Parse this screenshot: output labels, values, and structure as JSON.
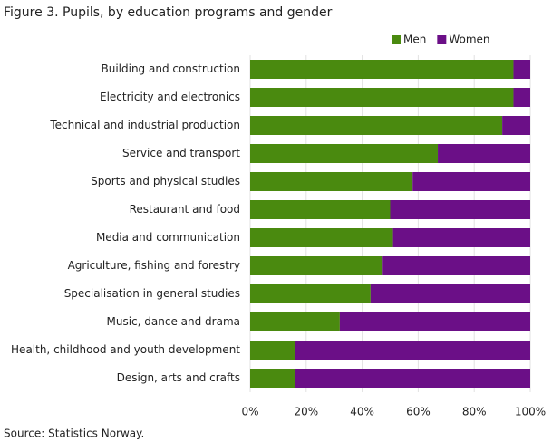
{
  "chart_data": {
    "type": "stacked-barh",
    "title": "Figure 3. Pupils, by education programs and gender",
    "categories": [
      "Building and construction",
      "Electricity and electronics",
      "Technical and industrial production",
      "Service and transport",
      "Sports and physical studies",
      "Restaurant and food",
      "Media and communication",
      "Agriculture, fishing and forestry",
      "Specialisation in general studies",
      "Music, dance and drama",
      "Health, childhood and youth development",
      "Design, arts and crafts"
    ],
    "series": [
      {
        "name": "Men",
        "color": "#4a8a0f",
        "values": [
          94,
          94,
          90,
          67,
          58,
          50,
          51,
          47,
          43,
          32,
          16,
          16
        ]
      },
      {
        "name": "Women",
        "color": "#6b0f87",
        "values": [
          6,
          6,
          10,
          33,
          42,
          50,
          49,
          53,
          57,
          68,
          84,
          84
        ]
      }
    ],
    "xlim": [
      0,
      100
    ],
    "xticks": [
      {
        "value": 0,
        "label": "0%"
      },
      {
        "value": 20,
        "label": "20%"
      },
      {
        "value": 40,
        "label": "40%"
      },
      {
        "value": 60,
        "label": "60%"
      },
      {
        "value": 80,
        "label": "80%"
      },
      {
        "value": 100,
        "label": "100%"
      }
    ],
    "grid": true,
    "legend": "top-right",
    "source": "Source: Statistics Norway."
  }
}
